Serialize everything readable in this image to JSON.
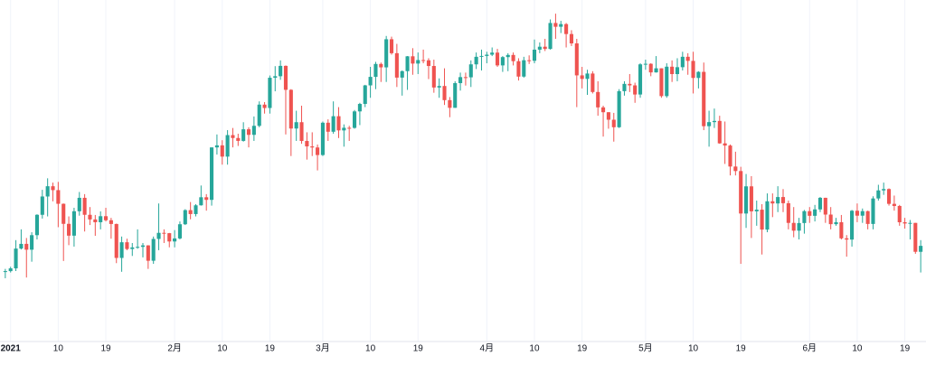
{
  "chart_data": {
    "type": "candlestick",
    "x": [
      "2020-12-31",
      "2021-01-01",
      "2021-01-02",
      "2021-01-03",
      "2021-01-04",
      "2021-01-05",
      "2021-01-06",
      "2021-01-07",
      "2021-01-08",
      "2021-01-09",
      "2021-01-10",
      "2021-01-11",
      "2021-01-12",
      "2021-01-13",
      "2021-01-14",
      "2021-01-15",
      "2021-01-16",
      "2021-01-17",
      "2021-01-18",
      "2021-01-19",
      "2021-01-20",
      "2021-01-21",
      "2021-01-22",
      "2021-01-23",
      "2021-01-24",
      "2021-01-25",
      "2021-01-26",
      "2021-01-27",
      "2021-01-28",
      "2021-01-29",
      "2021-01-30",
      "2021-01-31",
      "2021-02-01",
      "2021-02-02",
      "2021-02-03",
      "2021-02-04",
      "2021-02-05",
      "2021-02-06",
      "2021-02-07",
      "2021-02-08",
      "2021-02-09",
      "2021-02-10",
      "2021-02-11",
      "2021-02-12",
      "2021-02-13",
      "2021-02-14",
      "2021-02-15",
      "2021-02-16",
      "2021-02-17",
      "2021-02-18",
      "2021-02-19",
      "2021-02-20",
      "2021-02-21",
      "2021-02-22",
      "2021-02-23",
      "2021-02-24",
      "2021-02-25",
      "2021-02-26",
      "2021-02-27",
      "2021-02-28",
      "2021-03-01",
      "2021-03-02",
      "2021-03-03",
      "2021-03-04",
      "2021-03-05",
      "2021-03-06",
      "2021-03-07",
      "2021-03-08",
      "2021-03-09",
      "2021-03-10",
      "2021-03-11",
      "2021-03-12",
      "2021-03-13",
      "2021-03-14",
      "2021-03-15",
      "2021-03-16",
      "2021-03-17",
      "2021-03-18",
      "2021-03-19",
      "2021-03-20",
      "2021-03-21",
      "2021-03-22",
      "2021-03-23",
      "2021-03-24",
      "2021-03-25",
      "2021-03-26",
      "2021-03-27",
      "2021-03-28",
      "2021-03-29",
      "2021-03-30",
      "2021-03-31",
      "2021-04-01",
      "2021-04-02",
      "2021-04-03",
      "2021-04-04",
      "2021-04-05",
      "2021-04-06",
      "2021-04-07",
      "2021-04-08",
      "2021-04-09",
      "2021-04-10",
      "2021-04-11",
      "2021-04-12",
      "2021-04-13",
      "2021-04-14",
      "2021-04-15",
      "2021-04-16",
      "2021-04-17",
      "2021-04-18",
      "2021-04-19",
      "2021-04-20",
      "2021-04-21",
      "2021-04-22",
      "2021-04-23",
      "2021-04-24",
      "2021-04-25",
      "2021-04-26",
      "2021-04-27",
      "2021-04-28",
      "2021-04-29",
      "2021-04-30",
      "2021-05-01",
      "2021-05-02",
      "2021-05-03",
      "2021-05-04",
      "2021-05-05",
      "2021-05-06",
      "2021-05-07",
      "2021-05-08",
      "2021-05-09",
      "2021-05-10",
      "2021-05-11",
      "2021-05-12",
      "2021-05-13",
      "2021-05-14",
      "2021-05-15",
      "2021-05-16",
      "2021-05-17",
      "2021-05-18",
      "2021-05-19",
      "2021-05-20",
      "2021-05-21",
      "2021-05-22",
      "2021-05-23",
      "2021-05-24",
      "2021-05-25",
      "2021-05-26",
      "2021-05-27",
      "2021-05-28",
      "2021-05-29",
      "2021-05-30",
      "2021-05-31",
      "2021-06-01",
      "2021-06-02",
      "2021-06-03",
      "2021-06-04",
      "2021-06-05",
      "2021-06-06",
      "2021-06-07",
      "2021-06-08",
      "2021-06-09",
      "2021-06-10",
      "2021-06-11",
      "2021-06-12",
      "2021-06-13",
      "2021-06-14",
      "2021-06-15",
      "2021-06-16",
      "2021-06-17",
      "2021-06-18",
      "2021-06-19",
      "2021-06-20",
      "2021-06-21",
      "2021-06-22"
    ],
    "open": [
      28875,
      28990,
      29375,
      32127,
      32782,
      31971,
      33992,
      36824,
      39371,
      40797,
      40254,
      38356,
      35566,
      33922,
      37316,
      39187,
      36825,
      36178,
      35792,
      36630,
      36069,
      35547,
      30825,
      33005,
      32067,
      32289,
      32366,
      32569,
      30432,
      33466,
      34316,
      34269,
      33114,
      33538,
      35510,
      37472,
      36926,
      38144,
      39266,
      38903,
      46196,
      46481,
      44918,
      47909,
      47504,
      47105,
      48717,
      47945,
      49199,
      52149,
      51679,
      55888,
      56099,
      57539,
      54207,
      48824,
      49705,
      47093,
      46339,
      46188,
      45137,
      49631,
      48378,
      50538,
      48561,
      48927,
      48912,
      51206,
      52246,
      54824,
      56008,
      57805,
      57332,
      61243,
      59302,
      55907,
      56804,
      58870,
      57858,
      58346,
      58313,
      57523,
      54529,
      54738,
      52774,
      51704,
      55137,
      55974,
      55947,
      57750,
      58800,
      58918,
      59095,
      59384,
      57604,
      58758,
      59057,
      58192,
      56048,
      58323,
      58245,
      59793,
      60204,
      59893,
      63503,
      62977,
      63347,
      61966,
      60665,
      56216,
      55724,
      56473,
      53906,
      51763,
      51093,
      50050,
      49004,
      54021,
      55033,
      54824,
      53555,
      57750,
      57828,
      56631,
      57200,
      53333,
      57424,
      56396,
      57356,
      58803,
      58232,
      55859,
      56704,
      49150,
      49716,
      49880,
      46760,
      46456,
      43538,
      42910,
      37002,
      40782,
      37305,
      37536,
      34770,
      38705,
      38402,
      39295,
      38436,
      35697,
      34616,
      35678,
      37332,
      36685,
      37575,
      39188,
      36856,
      35521,
      35796,
      33552,
      33380,
      37388,
      36702,
      37334,
      35552,
      39097,
      40218,
      40406,
      38347,
      38053,
      35787,
      35615,
      35698,
      31676
    ],
    "high": [
      29300,
      29600,
      33300,
      34800,
      33600,
      34400,
      36900,
      40300,
      41900,
      41300,
      41400,
      38400,
      36600,
      37800,
      40000,
      39700,
      37900,
      36800,
      37300,
      37800,
      36400,
      35600,
      33800,
      33500,
      32900,
      34800,
      32900,
      32600,
      33800,
      38400,
      34800,
      34300,
      34700,
      35900,
      37600,
      38600,
      38300,
      40900,
      39700,
      46200,
      48000,
      47200,
      48600,
      48900,
      48100,
      49700,
      49000,
      50500,
      52600,
      52500,
      56200,
      57500,
      58300,
      57600,
      54300,
      51300,
      52000,
      48300,
      48300,
      46600,
      49800,
      50100,
      52600,
      51800,
      49400,
      49200,
      51400,
      52400,
      54900,
      57400,
      58100,
      58000,
      61700,
      61600,
      60600,
      56900,
      58900,
      60000,
      59400,
      59800,
      58600,
      58400,
      55800,
      57200,
      53200,
      55400,
      56600,
      56600,
      58300,
      59400,
      59800,
      59500,
      60100,
      59900,
      58900,
      59300,
      59400,
      58600,
      58800,
      59000,
      61200,
      60800,
      61300,
      64000,
      64800,
      63800,
      63500,
      62500,
      61300,
      57400,
      57000,
      56800,
      55400,
      52000,
      51100,
      51000,
      54300,
      55400,
      56400,
      55200,
      57900,
      58400,
      57900,
      58900,
      57200,
      57900,
      58300,
      58600,
      59500,
      59300,
      59500,
      56800,
      58000,
      51300,
      51600,
      50600,
      49800,
      46600,
      45600,
      43500,
      42500,
      42200,
      38800,
      38300,
      39800,
      39800,
      40800,
      40400,
      38800,
      37900,
      36400,
      37500,
      37900,
      38200,
      39300,
      39200,
      37900,
      36400,
      36800,
      34000,
      37500,
      38400,
      37700,
      37400,
      39400,
      41000,
      41300,
      40500,
      39500,
      38200,
      36400,
      36100,
      35700,
      33300
    ],
    "low": [
      28000,
      28800,
      29000,
      32000,
      28100,
      30300,
      33400,
      36300,
      36600,
      38700,
      35100,
      30400,
      32600,
      32400,
      36700,
      34500,
      35400,
      33900,
      34800,
      35900,
      33500,
      30100,
      28900,
      31900,
      31100,
      32100,
      30900,
      29300,
      30000,
      31900,
      32900,
      32300,
      32300,
      33400,
      35400,
      36200,
      36600,
      38100,
      37400,
      38100,
      45200,
      43800,
      43800,
      46200,
      46400,
      47000,
      46200,
      47100,
      49000,
      50900,
      50900,
      54000,
      55600,
      48000,
      45000,
      47100,
      46700,
      44500,
      45000,
      43000,
      45000,
      47100,
      48100,
      47500,
      46300,
      47100,
      48800,
      49300,
      51800,
      53100,
      54300,
      55300,
      55300,
      59100,
      54600,
      53400,
      54200,
      56300,
      56400,
      57900,
      55700,
      53800,
      53100,
      52100,
      50400,
      51700,
      54100,
      54800,
      54600,
      57100,
      56900,
      57900,
      58900,
      57400,
      56700,
      56800,
      57600,
      55500,
      55900,
      57800,
      57900,
      59300,
      59600,
      59800,
      61300,
      62100,
      60100,
      60300,
      51800,
      54400,
      53500,
      53700,
      50600,
      47700,
      48800,
      47000,
      48900,
      53400,
      53900,
      52400,
      53100,
      57000,
      56100,
      56600,
      53100,
      53100,
      55300,
      55400,
      56900,
      56300,
      53700,
      54400,
      48600,
      46300,
      48900,
      46700,
      43900,
      42300,
      42300,
      30000,
      35000,
      33600,
      35300,
      31300,
      34400,
      36500,
      37200,
      37200,
      34800,
      33700,
      33400,
      34200,
      35700,
      35900,
      37200,
      35700,
      34800,
      35300,
      33400,
      31000,
      32400,
      35800,
      35700,
      34800,
      34800,
      38800,
      39600,
      38100,
      37400,
      35300,
      34900,
      33400,
      31400,
      28800
    ],
    "close": [
      28990,
      29375,
      32127,
      32782,
      31971,
      33992,
      36824,
      39371,
      40797,
      40254,
      38356,
      35566,
      33922,
      37316,
      39187,
      36825,
      36178,
      35792,
      36630,
      36069,
      35547,
      30825,
      33005,
      32067,
      32289,
      32366,
      32569,
      30432,
      33466,
      34316,
      34269,
      33114,
      33538,
      35510,
      37472,
      36926,
      38144,
      39266,
      38903,
      46196,
      46481,
      44918,
      47909,
      47504,
      47105,
      48717,
      47945,
      49199,
      52149,
      51679,
      55888,
      56099,
      57539,
      54207,
      48824,
      49705,
      47093,
      46339,
      46188,
      45137,
      49631,
      48378,
      50538,
      48561,
      48927,
      48912,
      51206,
      52246,
      54824,
      56008,
      57805,
      57332,
      61243,
      59302,
      55907,
      56804,
      58870,
      57858,
      58346,
      58313,
      57523,
      54529,
      54738,
      52774,
      51704,
      55137,
      55974,
      55947,
      57750,
      58800,
      58918,
      59095,
      59384,
      57604,
      58758,
      59057,
      58192,
      56048,
      58323,
      58245,
      59793,
      60204,
      59893,
      63503,
      62977,
      63347,
      61966,
      60665,
      56216,
      55724,
      56473,
      53906,
      51763,
      51093,
      50050,
      49004,
      54021,
      55033,
      54824,
      53555,
      57750,
      57828,
      56631,
      57200,
      53333,
      57424,
      56396,
      57356,
      58803,
      58232,
      55859,
      56704,
      49150,
      49716,
      49880,
      46760,
      46456,
      43538,
      42910,
      37002,
      40782,
      37305,
      37536,
      34770,
      38705,
      38402,
      39295,
      38436,
      35697,
      34616,
      35678,
      37332,
      36685,
      37575,
      39188,
      36856,
      35521,
      35796,
      33552,
      33380,
      37388,
      36702,
      37334,
      35552,
      39097,
      40218,
      40406,
      38347,
      38053,
      35787,
      35615,
      35698,
      31676,
      32505
    ],
    "up_color": "#26a69a",
    "down_color": "#ef5350",
    "xlim": [
      "2020-12-30",
      "2021-06-23"
    ],
    "xticks": [
      {
        "value": "2021-01-01",
        "label": "2021"
      },
      {
        "value": "2021-01-10",
        "label": "10"
      },
      {
        "value": "2021-01-19",
        "label": "19"
      },
      {
        "value": "2021-02-01",
        "label": "2月"
      },
      {
        "value": "2021-02-10",
        "label": "10"
      },
      {
        "value": "2021-02-19",
        "label": "19"
      },
      {
        "value": "2021-03-01",
        "label": "3月"
      },
      {
        "value": "2021-03-10",
        "label": "10"
      },
      {
        "value": "2021-03-19",
        "label": "19"
      },
      {
        "value": "2021-04-01",
        "label": "4月"
      },
      {
        "value": "2021-04-10",
        "label": "10"
      },
      {
        "value": "2021-04-19",
        "label": "19"
      },
      {
        "value": "2021-05-01",
        "label": "5月"
      },
      {
        "value": "2021-05-10",
        "label": "10"
      },
      {
        "value": "2021-05-19",
        "label": "19"
      },
      {
        "value": "2021-06-01",
        "label": "6月"
      },
      {
        "value": "2021-06-10",
        "label": "10"
      },
      {
        "value": "2021-06-19",
        "label": "19"
      }
    ],
    "ylim": [
      19200,
      66700
    ],
    "grid": true
  }
}
